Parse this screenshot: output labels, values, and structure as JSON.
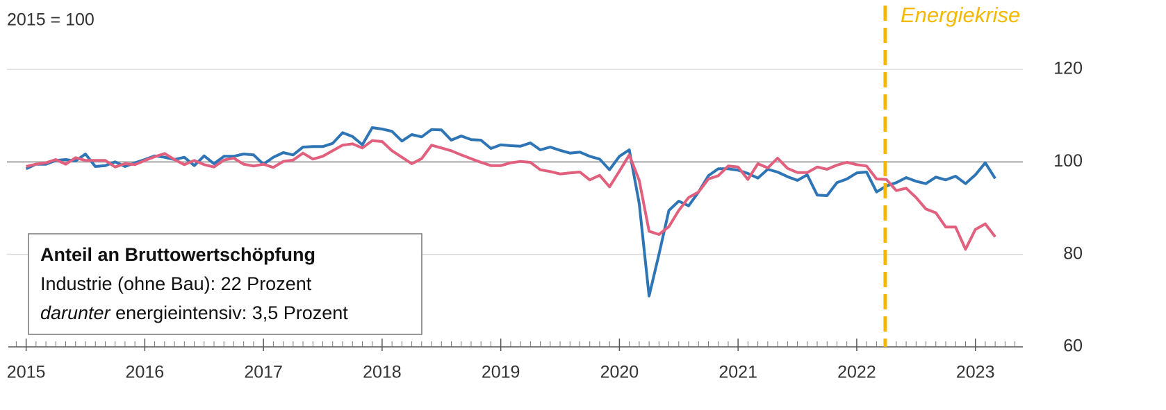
{
  "chart_data": {
    "type": "line",
    "subtitle": "2015 = 100",
    "x": [
      2015.0,
      2015.083,
      2015.167,
      2015.25,
      2015.333,
      2015.417,
      2015.5,
      2015.583,
      2015.667,
      2015.75,
      2015.833,
      2015.917,
      2016.0,
      2016.083,
      2016.167,
      2016.25,
      2016.333,
      2016.417,
      2016.5,
      2016.583,
      2016.667,
      2016.75,
      2016.833,
      2016.917,
      2017.0,
      2017.083,
      2017.167,
      2017.25,
      2017.333,
      2017.417,
      2017.5,
      2017.583,
      2017.667,
      2017.75,
      2017.833,
      2017.917,
      2018.0,
      2018.083,
      2018.167,
      2018.25,
      2018.333,
      2018.417,
      2018.5,
      2018.583,
      2018.667,
      2018.75,
      2018.833,
      2018.917,
      2019.0,
      2019.083,
      2019.167,
      2019.25,
      2019.333,
      2019.417,
      2019.5,
      2019.583,
      2019.667,
      2019.75,
      2019.833,
      2019.917,
      2020.0,
      2020.083,
      2020.167,
      2020.25,
      2020.333,
      2020.417,
      2020.5,
      2020.583,
      2020.667,
      2020.75,
      2020.833,
      2020.917,
      2021.0,
      2021.083,
      2021.167,
      2021.25,
      2021.333,
      2021.417,
      2021.5,
      2021.583,
      2021.667,
      2021.75,
      2021.833,
      2021.917,
      2022.0,
      2022.083,
      2022.167,
      2022.25,
      2022.333,
      2022.417,
      2022.5,
      2022.583,
      2022.667,
      2022.75,
      2022.833,
      2022.917,
      2023.0,
      2023.083,
      2023.167
    ],
    "series": [
      {
        "color": "#2e75b6",
        "values": [
          98.5,
          99.5,
          99.5,
          100.3,
          100.5,
          100.2,
          101.7,
          99,
          99.2,
          100,
          99,
          99.8,
          100.5,
          101.3,
          101,
          100.5,
          101,
          99.2,
          101.3,
          99.6,
          101.2,
          101.2,
          101.7,
          101.5,
          99.5,
          101,
          102,
          101.5,
          103.2,
          103.3,
          103.3,
          104,
          106.3,
          105.5,
          103.7,
          107.4,
          107.1,
          106.6,
          104.5,
          105.9,
          105.4,
          107,
          106.9,
          104.7,
          105.6,
          104.8,
          104.7,
          102.9,
          103.7,
          103.5,
          103.4,
          104.1,
          102.6,
          103.2,
          102.5,
          101.9,
          102.1,
          101.2,
          100.6,
          98.3,
          101.2,
          102.6,
          91,
          71,
          80,
          89.5,
          91.5,
          90.5,
          93.5,
          97,
          98.5,
          98.5,
          98.2,
          97.5,
          96.5,
          98.4,
          97.8,
          96.8,
          96,
          97.2,
          92.8,
          92.7,
          95.5,
          96.3,
          97.6,
          97.8,
          93.5,
          94.8,
          95.5,
          96.6,
          95.8,
          95.3,
          96.7,
          96.1,
          96.9,
          95.3,
          97.2,
          99.8,
          96.4
        ]
      },
      {
        "color": "#e0607e",
        "values": [
          99,
          99.5,
          99.8,
          100.5,
          99.5,
          100.9,
          100.3,
          100.3,
          100.3,
          98.9,
          99.6,
          99.4,
          100.3,
          101.1,
          101.8,
          100.5,
          99.4,
          100.3,
          99.4,
          98.9,
          100.4,
          100.8,
          99.5,
          99.1,
          99.5,
          98.8,
          100.1,
          100.4,
          101.9,
          100.6,
          101.2,
          102.4,
          103.6,
          103.9,
          103,
          104.6,
          104.4,
          102.4,
          101,
          99.6,
          100.7,
          103.6,
          103,
          102.4,
          101.5,
          100.7,
          99.9,
          99.2,
          99.2,
          99.8,
          100.1,
          99.9,
          98.3,
          97.9,
          97.4,
          97.6,
          97.8,
          96.1,
          97.1,
          94.6,
          98,
          101.5,
          96,
          85,
          84.3,
          86,
          89.5,
          92.3,
          93.5,
          96.3,
          97,
          99.1,
          98.9,
          96.2,
          99.6,
          98.7,
          100.8,
          98.6,
          97.7,
          97.7,
          98.9,
          98.4,
          99.3,
          99.9,
          99.4,
          99.1,
          96.3,
          96.2,
          93.8,
          94.3,
          92.3,
          89.8,
          89,
          85.9,
          85.9,
          81.1,
          85.4,
          86.6,
          83.8
        ]
      }
    ],
    "xlim": [
      2014.85,
      2023.4
    ],
    "xticks": [
      2015,
      2016,
      2017,
      2018,
      2019,
      2020,
      2021,
      2022,
      2023
    ],
    "ylim": [
      60,
      135
    ],
    "yticks": [
      60,
      80,
      100,
      120
    ],
    "grid": true,
    "reference_line": 100,
    "annotation": {
      "text": "Energiekrise",
      "x": 2022.24,
      "color": "#f5b800"
    },
    "box": {
      "title": "Anteil an Bruttowertschöpfung",
      "line1": "Industrie (ohne Bau): 22 Prozent",
      "line2_italic": "darunter",
      "line2_rest": " energieintensiv: 3,5 Prozent"
    }
  }
}
